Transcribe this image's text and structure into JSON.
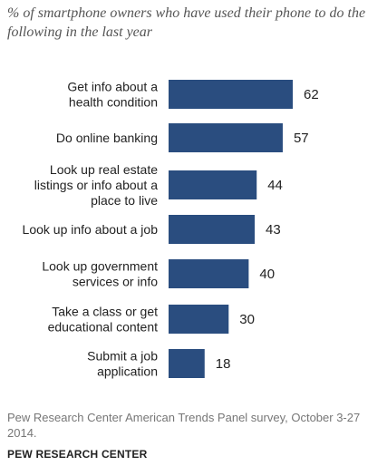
{
  "chart_data": {
    "type": "bar",
    "orientation": "horizontal",
    "title": "% of smartphone owners who have used their phone to do the following in the last year",
    "categories": [
      [
        "Get info about a",
        "health condition"
      ],
      [
        "Do online banking"
      ],
      [
        "Look up real estate",
        "listings or info about a",
        "place to live"
      ],
      [
        "Look up info about a job"
      ],
      [
        "Look up government",
        "services or info"
      ],
      [
        "Take a class or get",
        "educational content"
      ],
      [
        "Submit a job",
        "application"
      ]
    ],
    "values": [
      62,
      57,
      44,
      43,
      40,
      30,
      18
    ],
    "xlim": [
      0,
      62
    ],
    "grid": false,
    "legend": "none",
    "bar_color": "#2a4d7f"
  },
  "source": "Pew Research Center American Trends Panel survey, October 3-27 2014.",
  "brand": "PEW RESEARCH CENTER"
}
